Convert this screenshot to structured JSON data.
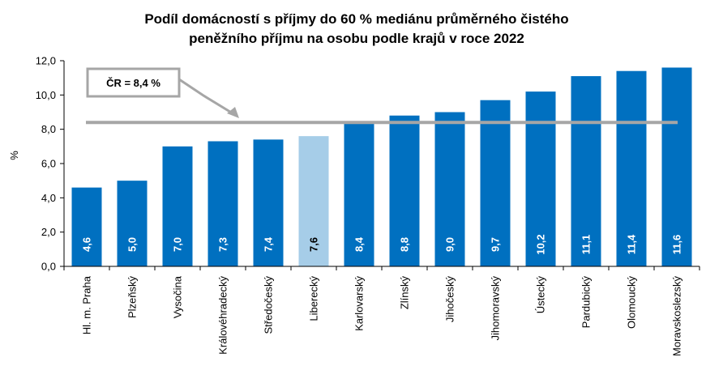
{
  "chart_data": {
    "type": "bar",
    "title_lines": [
      "Podíl domácností s příjmy do 60 % mediánu průměrného čistého",
      "peněžního příjmu na osobu podle krajů v roce 2022"
    ],
    "ylabel": "%",
    "xlabel": "",
    "ylim": [
      0,
      12
    ],
    "ytick_step": 2,
    "ytick_labels": [
      "0,0",
      "2,0",
      "4,0",
      "6,0",
      "8,0",
      "10,0",
      "12,0"
    ],
    "categories": [
      "Hl. m. Praha",
      "Plzeňský",
      "Vysočina",
      "Královéhradecký",
      "Středočeský",
      "Liberecký",
      "Karlovarský",
      "Zlínský",
      "Jihočeský",
      "Jihomoravský",
      "Ústecký",
      "Pardubický",
      "Olomoucký",
      "Moravskoslezský"
    ],
    "values": [
      4.6,
      5.0,
      7.0,
      7.3,
      7.4,
      7.6,
      8.4,
      8.8,
      9.0,
      9.7,
      10.2,
      11.1,
      11.4,
      11.6
    ],
    "value_labels": [
      "4,6",
      "5,0",
      "7,0",
      "7,3",
      "7,4",
      "7,6",
      "8,4",
      "8,8",
      "9,0",
      "9,7",
      "10,2",
      "11,1",
      "11,4",
      "11,6"
    ],
    "highlight_index": 5,
    "reference_line": {
      "value": 8.4,
      "label": "ČR = 8,4 %"
    },
    "grid": false,
    "colors": {
      "bar": "#0070C0",
      "bar_highlight": "#A6CDE8",
      "reference": "#A6A6A6",
      "label_on_bar": "#ffffff",
      "label_on_highlight": "#000000",
      "axis": "#000000"
    }
  }
}
